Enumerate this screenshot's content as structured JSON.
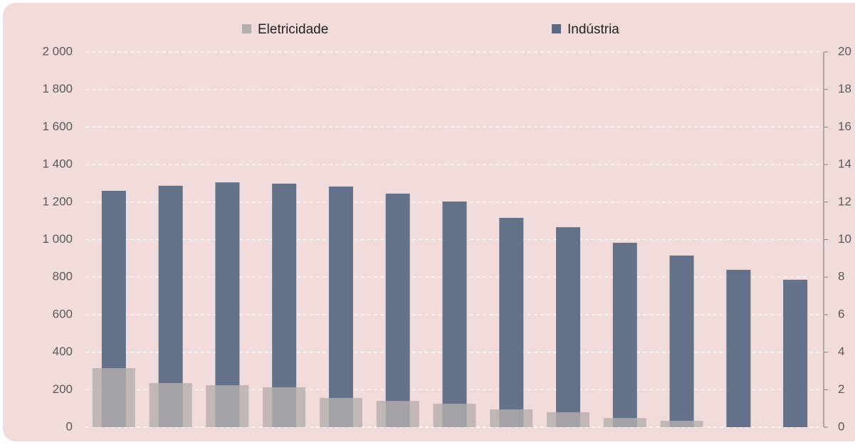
{
  "chart_data": {
    "type": "bar",
    "categories": [
      null,
      null,
      null,
      null,
      null,
      null,
      null,
      null,
      null,
      null,
      null,
      null,
      null
    ],
    "series": [
      {
        "name": "Eletricidade",
        "color": "#b5aeae",
        "values": [
          315,
          235,
          224,
          213,
          156,
          140,
          125,
          95,
          80,
          49,
          34,
          null,
          null
        ]
      },
      {
        "name": "Indústria",
        "color": "#5b6b86",
        "axis": "y2",
        "values": [
          12.6,
          12.87,
          13.05,
          12.98,
          12.83,
          12.45,
          12.03,
          11.16,
          10.66,
          9.83,
          9.15,
          8.39,
          7.86
        ]
      }
    ],
    "ylim": [
      0,
      2000
    ],
    "yticks": [
      0,
      200,
      400,
      600,
      800,
      {
        "value": 1000,
        "label": "1 000"
      },
      {
        "value": 1200,
        "label": "1 200"
      },
      {
        "value": 1400,
        "label": "1 400"
      },
      {
        "value": 1600,
        "label": "1 600"
      },
      {
        "value": 1800,
        "label": "1 800"
      },
      {
        "value": 2000,
        "label": "2 000"
      }
    ],
    "y2lim": [
      0,
      20
    ],
    "y2ticks": [
      0,
      2,
      4,
      6,
      8,
      10,
      12,
      14,
      16,
      18,
      20
    ],
    "grid": true,
    "legend": "top"
  }
}
